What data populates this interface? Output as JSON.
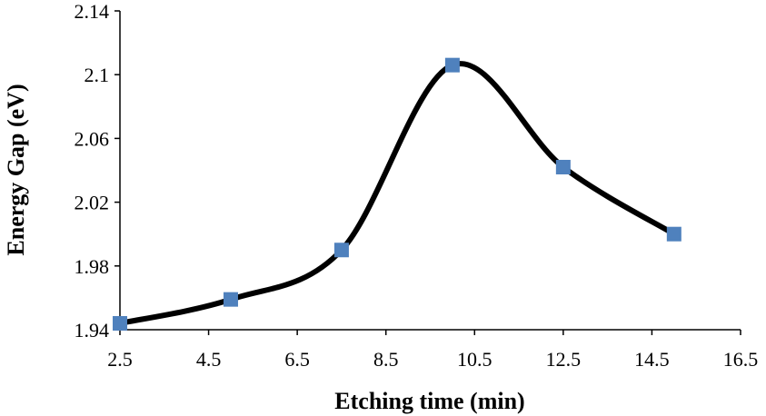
{
  "chart_data": {
    "type": "line",
    "xlabel": "Etching time (min)",
    "ylabel": "Energy Gap (eV)",
    "xlim": [
      2.5,
      16.5
    ],
    "ylim": [
      1.94,
      2.14
    ],
    "x_ticks": [
      "2.5",
      "4.5",
      "6.5",
      "8.5",
      "10.5",
      "12.5",
      "14.5",
      "16.5"
    ],
    "y_ticks": [
      "1.94",
      "1.98",
      "2.02",
      "2.06",
      "2.1",
      "2.14"
    ],
    "grid": false,
    "series": [
      {
        "x": [
          2.5,
          5,
          7.5,
          10,
          12.5,
          15
        ],
        "y": [
          1.944,
          1.959,
          1.99,
          2.106,
          2.042,
          2.0
        ],
        "line_color": "#000000",
        "marker": "square",
        "marker_color": "#4f81bd"
      }
    ]
  }
}
